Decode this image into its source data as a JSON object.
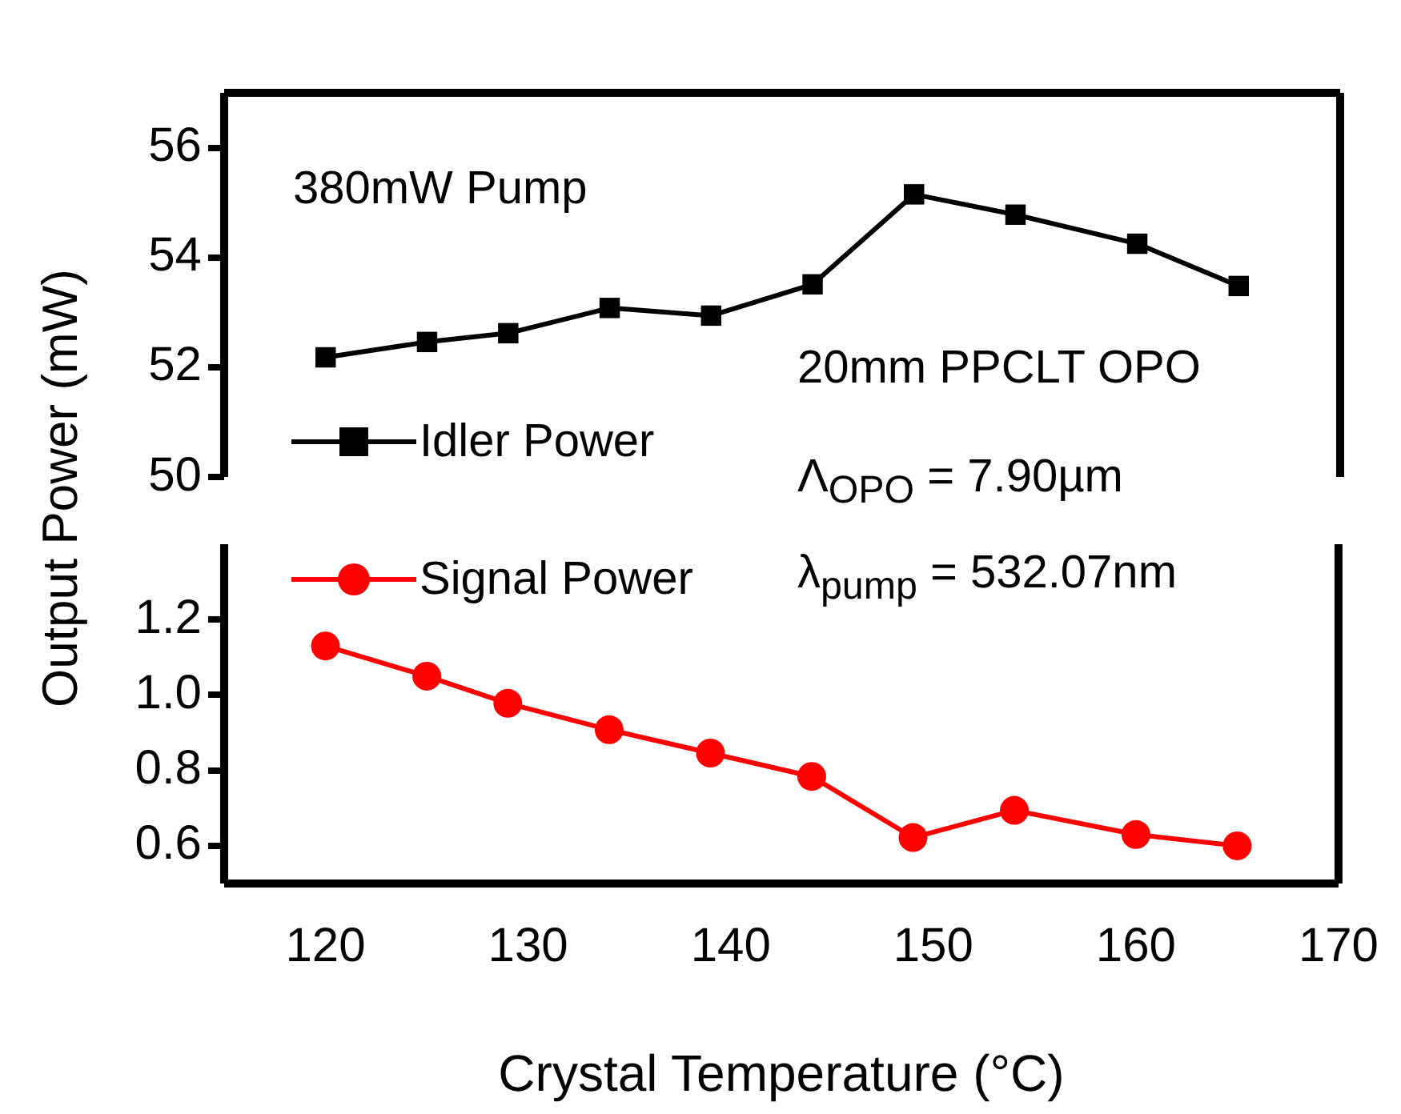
{
  "chart_data": [
    {
      "type": "line",
      "x": [
        120,
        125,
        129,
        134,
        139,
        144,
        149,
        154,
        160,
        165
      ],
      "series": [
        {
          "name": "Idler Power",
          "color": "#000000",
          "values": [
            52.18,
            52.46,
            52.62,
            53.08,
            52.94,
            53.51,
            55.15,
            54.78,
            54.25,
            53.48
          ]
        }
      ],
      "xlim": [
        115,
        170
      ],
      "ylim": [
        50,
        57
      ],
      "yticks": [
        50,
        52,
        54,
        56
      ],
      "tick_labels": "y",
      "marker": "square",
      "line_style": "solid",
      "grid": false,
      "legend": "bottom left",
      "annotations": [
        "380mW Pump",
        "20mm PPCLT OPO"
      ]
    },
    {
      "type": "line",
      "x": [
        120,
        125,
        129,
        134,
        139,
        144,
        149,
        154,
        160,
        165
      ],
      "series": [
        {
          "name": "Signal Power",
          "color": "#ff0000",
          "values": [
            1.13,
            1.05,
            0.978,
            0.908,
            0.846,
            0.784,
            0.622,
            0.694,
            0.63,
            0.6
          ]
        }
      ],
      "xlim": [
        115,
        170
      ],
      "xticks": [
        120,
        130,
        140,
        150,
        160,
        170
      ],
      "ylim": [
        0.5,
        1.4
      ],
      "yticks": [
        0.6,
        0.8,
        {
          "value": 1,
          "label": "1.0"
        },
        1.2
      ],
      "xlabel": "Crystal Temperature (°C)",
      "ylabel": "Output Power (mW)",
      "marker": "circle",
      "line_style": "solid",
      "grid": false,
      "legend": "top left",
      "annotations": [
        "Λ$_{OPO}$ = 7.90µm",
        "λ$_{pump}$ = 532.07nm"
      ]
    }
  ]
}
